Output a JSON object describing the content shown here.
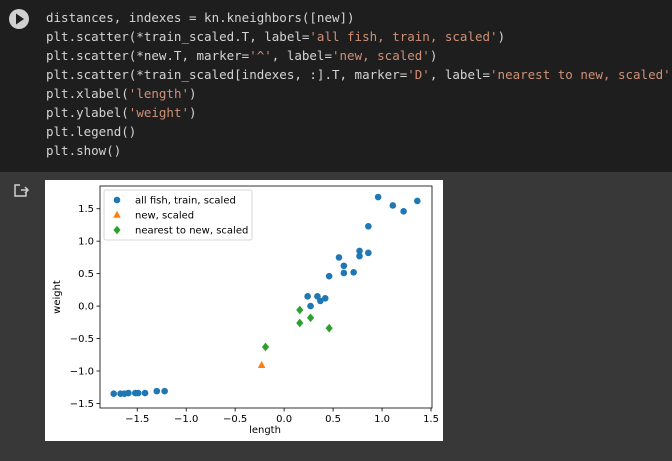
{
  "code": {
    "lines": [
      [
        "distances, indexes = kn.kneighbors([new])"
      ],
      [
        "plt.scatter(*train_scaled.T, label=",
        "'all fish, train, scaled'",
        ")"
      ],
      [
        "plt.scatter(*new.T, marker=",
        "'^'",
        ", label=",
        "'new, scaled'",
        ")"
      ],
      [
        "plt.scatter(*train_scaled[indexes, :].T, marker=",
        "'D'",
        ", label=",
        "'nearest to new, scaled'",
        ")"
      ],
      [
        "plt.xlabel(",
        "'length'",
        ")"
      ],
      [
        "plt.ylabel(",
        "'weight'",
        ")"
      ],
      [
        "plt.legend()"
      ],
      [
        "plt.show()"
      ]
    ]
  },
  "chart_data": {
    "type": "scatter",
    "xlabel": "length",
    "ylabel": "weight",
    "xlim": [
      -1.88,
      1.51
    ],
    "ylim": [
      -1.57,
      1.85
    ],
    "xticks": [
      {
        "value": -1.5,
        "label": "−1.5"
      },
      {
        "value": -1.0,
        "label": "−1.0"
      },
      {
        "value": -0.5,
        "label": "−0.5"
      },
      {
        "value": 0,
        "label": "0.0"
      },
      0.5,
      {
        "value": 1,
        "label": "1.0"
      },
      1.5
    ],
    "yticks": [
      {
        "value": -1.5,
        "label": "−1.5"
      },
      {
        "value": -1.0,
        "label": "−1.0"
      },
      {
        "value": -0.5,
        "label": "−0.5"
      },
      {
        "value": 0,
        "label": "0.0"
      },
      0.5,
      {
        "value": 1,
        "label": "1.0"
      },
      1.5
    ],
    "legend": "upper left",
    "series": [
      {
        "name": "all fish, train, scaled",
        "color": "#1f77b4",
        "marker": "circle",
        "x": [
          0.96,
          1.11,
          1.22,
          1.36,
          0.86,
          0.77,
          0.77,
          0.86,
          0.56,
          0.61,
          0.61,
          0.71,
          0.46,
          0.24,
          0.34,
          0.42,
          0.37,
          0.27,
          -1.74,
          -1.67,
          -1.63,
          -1.59,
          -1.52,
          -1.49,
          -1.42,
          -1.3,
          -1.22
        ],
        "y": [
          1.68,
          1.55,
          1.46,
          1.62,
          1.23,
          0.85,
          0.77,
          0.82,
          0.75,
          0.62,
          0.51,
          0.52,
          0.46,
          0.15,
          0.15,
          0.12,
          0.08,
          0.0,
          -1.35,
          -1.35,
          -1.35,
          -1.34,
          -1.34,
          -1.34,
          -1.34,
          -1.31,
          -1.31
        ]
      },
      {
        "name": "new, scaled",
        "color": "#ff7f0e",
        "marker": "triangle",
        "x": [
          -0.23
        ],
        "y": [
          -0.91
        ]
      },
      {
        "name": "nearest to new, scaled",
        "color": "#2ca02c",
        "marker": "diamond",
        "x": [
          -0.19,
          0.16,
          0.27,
          0.16,
          0.46
        ],
        "y": [
          -0.63,
          -0.06,
          -0.18,
          -0.26,
          -0.34
        ]
      }
    ]
  }
}
